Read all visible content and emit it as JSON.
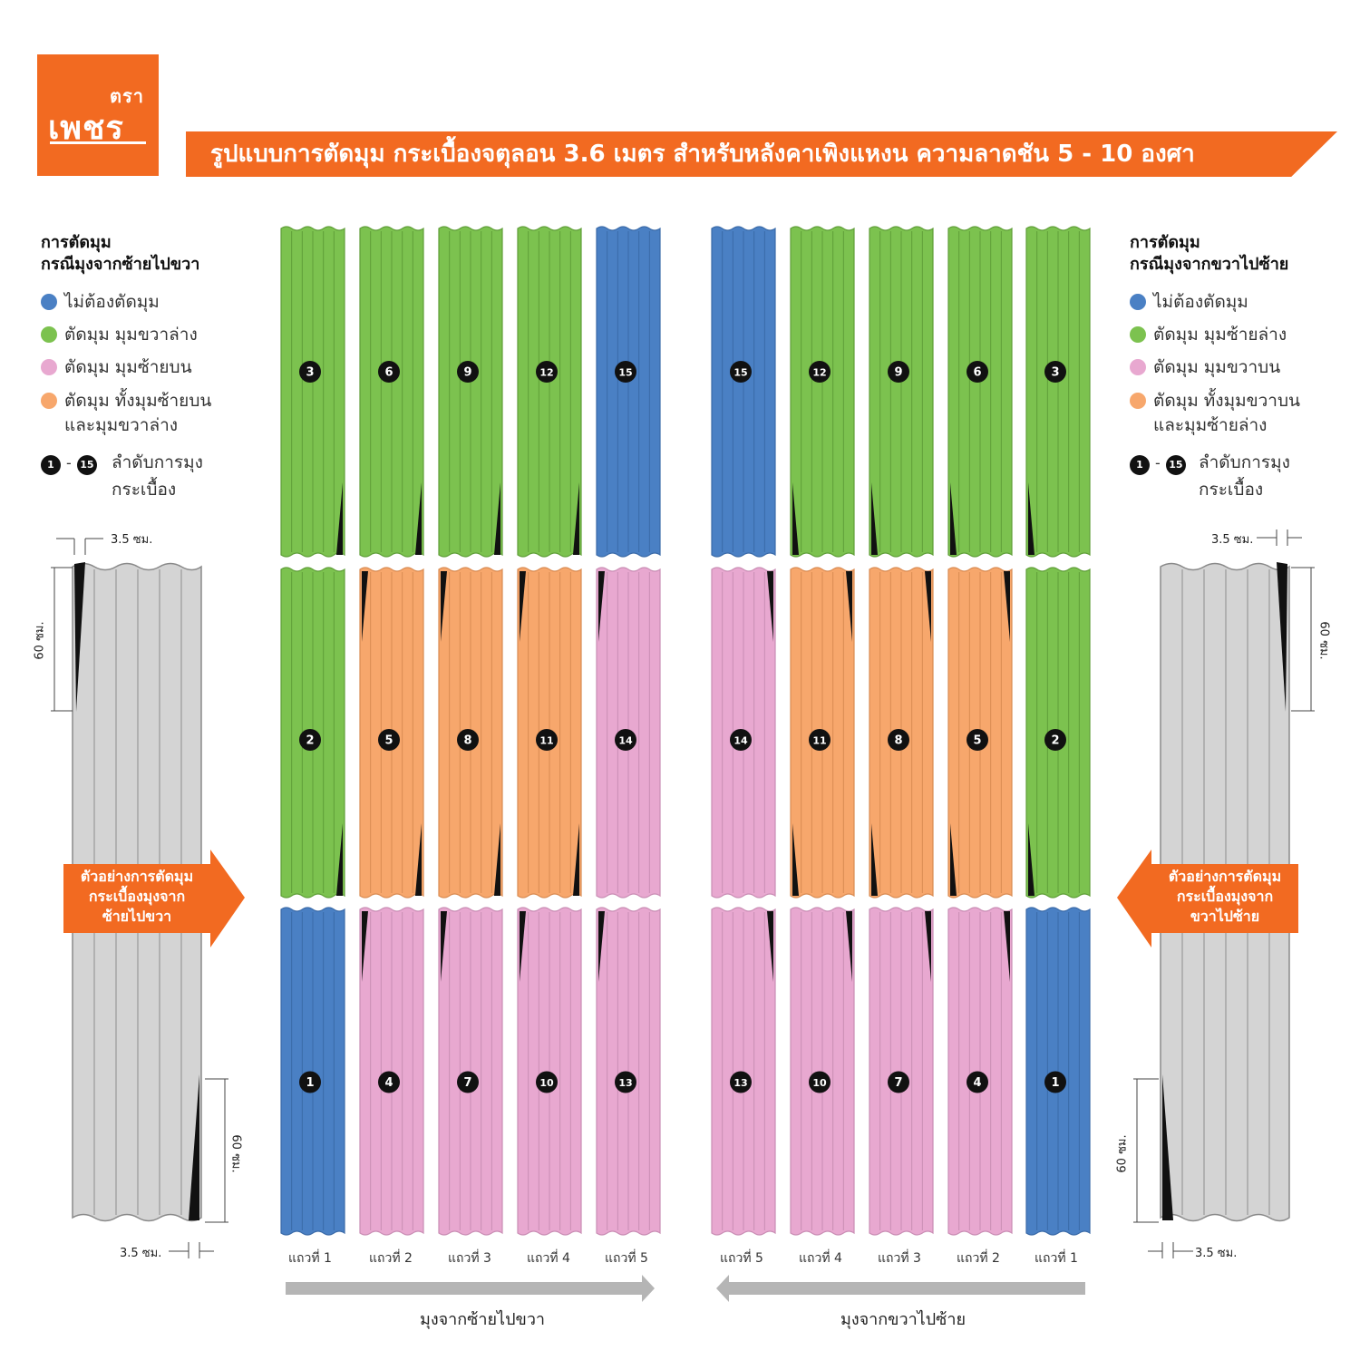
{
  "logo": {
    "small": "ตรา",
    "big": "เพชร",
    "colors": {
      "bg": "#f26a21"
    }
  },
  "title": "รูปแบบการตัดมุม กระเบื้องจตุลอน 3.6 เมตร สำหรับหลังคาเพิงแหงน ความลาดชัน 5 - 10 องศา",
  "legend_left": {
    "title_1": "การตัดมุม",
    "title_2": "กรณีมุงจากซ้ายไปขวา",
    "items": [
      "ไม่ต้องตัดมุม",
      "ตัดมุม มุมขวาล่าง",
      "ตัดมุม มุมซ้ายบน",
      "ตัดมุม ทั้งมุมซ้ายบน",
      "และมุมขวาล่าง"
    ],
    "order_from": "1",
    "order_to": "15",
    "order_sep": "-",
    "order_text_1": "ลำดับการมุง",
    "order_text_2": "กระเบื้อง"
  },
  "legend_right": {
    "title_1": "การตัดมุม",
    "title_2": "กรณีมุงจากขวาไปซ้าย",
    "items": [
      "ไม่ต้องตัดมุม",
      "ตัดมุม มุมซ้ายล่าง",
      "ตัดมุม มุมขวาบน",
      "ตัดมุม ทั้งมุมขวาบน",
      "และมุมซ้ายล่าง"
    ],
    "order_from": "1",
    "order_to": "15",
    "order_sep": "-",
    "order_text_1": "ลำดับการมุง",
    "order_text_2": "กระเบื้อง"
  },
  "colors": {
    "blue": "#4a80c4",
    "green": "#7cc24f",
    "pink": "#e8a8d0",
    "orange": "#f7a76c",
    "gray": "#d4d4d4",
    "accent": "#f26a21",
    "arrow_gray": "#b5b5b5"
  },
  "example_left": {
    "lines": [
      "ตัวอย่างการตัดมุม",
      "กระเบื้องมุงจาก",
      "ซ้ายไปขวา"
    ],
    "dim_cm_width": "3.5 ซม.",
    "dim_cm_height": "60 ซม."
  },
  "example_right": {
    "lines": [
      "ตัวอย่างการตัดมุม",
      "กระเบื้องมุงจาก",
      "ขวาไปซ้าย"
    ],
    "dim_cm_width": "3.5 ซม.",
    "dim_cm_height": "60 ซม."
  },
  "grid_left": {
    "columns": [
      "แถวที่ 1",
      "แถวที่ 2",
      "แถวที่ 3",
      "แถวที่ 4",
      "แถวที่ 5"
    ],
    "rows_top_to_bottom": [
      {
        "colors": [
          "green",
          "green",
          "green",
          "green",
          "blue"
        ],
        "numbers": [
          "3",
          "6",
          "9",
          "12",
          "15"
        ]
      },
      {
        "colors": [
          "green",
          "orange",
          "orange",
          "orange",
          "pink"
        ],
        "numbers": [
          "2",
          "5",
          "8",
          "11",
          "14"
        ]
      },
      {
        "colors": [
          "blue",
          "pink",
          "pink",
          "pink",
          "pink"
        ],
        "numbers": [
          "1",
          "4",
          "7",
          "10",
          "13"
        ]
      }
    ],
    "direction": "มุงจากซ้ายไปขวา"
  },
  "grid_right": {
    "columns": [
      "แถวที่ 5",
      "แถวที่ 4",
      "แถวที่ 3",
      "แถวที่ 2",
      "แถวที่ 1"
    ],
    "rows_top_to_bottom": [
      {
        "colors": [
          "blue",
          "green",
          "green",
          "green",
          "green"
        ],
        "numbers": [
          "15",
          "12",
          "9",
          "6",
          "3"
        ]
      },
      {
        "colors": [
          "pink",
          "orange",
          "orange",
          "orange",
          "green"
        ],
        "numbers": [
          "14",
          "11",
          "8",
          "5",
          "2"
        ]
      },
      {
        "colors": [
          "pink",
          "pink",
          "pink",
          "pink",
          "blue"
        ],
        "numbers": [
          "13",
          "10",
          "7",
          "4",
          "1"
        ]
      }
    ],
    "direction": "มุงจากขวาไปซ้าย"
  }
}
